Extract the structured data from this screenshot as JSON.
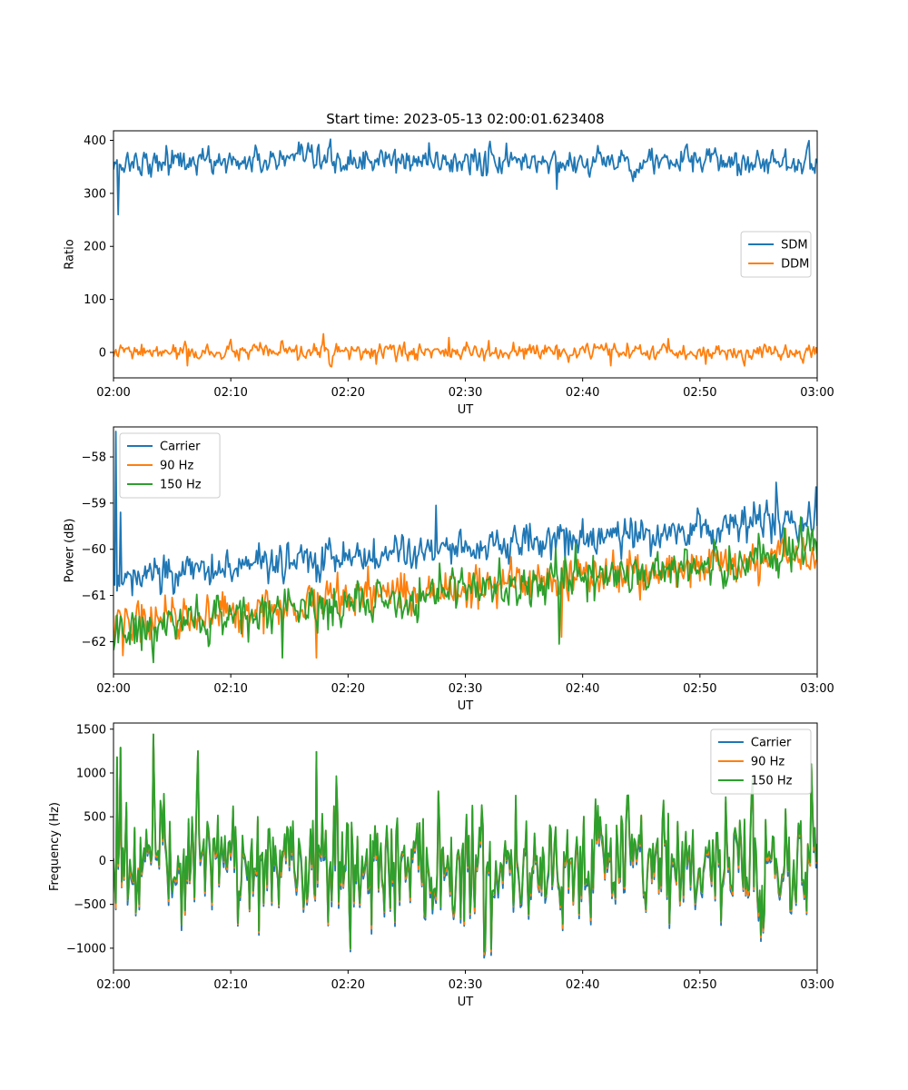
{
  "figure": {
    "title": "Start time: 2023-05-13 02:00:01.623408"
  },
  "colors": {
    "blue": "#1f77b4",
    "orange": "#ff7f0e",
    "green": "#2ca02c"
  },
  "chart_data": [
    {
      "type": "line",
      "title": "Start time: 2023-05-13 02:00:01.623408",
      "xlabel": "UT",
      "ylabel": "Ratio",
      "xlim_minutes": [
        0,
        60
      ],
      "xticks": [
        "02:00",
        "02:10",
        "02:20",
        "02:30",
        "02:40",
        "02:50",
        "03:00"
      ],
      "ylim": [
        -48,
        418
      ],
      "yticks": [
        0,
        100,
        200,
        300,
        400
      ],
      "legend": {
        "position": "center-right",
        "entries": [
          "SDM",
          "DDM"
        ]
      },
      "series": [
        {
          "name": "SDM",
          "color": "#1f77b4",
          "base": 360,
          "amplitude": 12,
          "spikes": [
            [
              0.0,
              345
            ],
            [
              0.4,
              260
            ],
            [
              0.9,
              340
            ],
            [
              1.8,
              370
            ],
            [
              4.5,
              390
            ],
            [
              17.5,
              392
            ],
            [
              26.9,
              395
            ],
            [
              37.8,
              308
            ],
            [
              53.5,
              335
            ],
            [
              59.8,
              338
            ]
          ]
        },
        {
          "name": "DDM",
          "color": "#ff7f0e",
          "base": 0,
          "amplitude": 7,
          "spikes": [
            [
              0.0,
              -8
            ],
            [
              6.3,
              -25
            ],
            [
              17.9,
              35
            ],
            [
              22.4,
              -22
            ],
            [
              28.6,
              28
            ],
            [
              42.4,
              -25
            ],
            [
              50.5,
              -22
            ],
            [
              59.8,
              -3
            ]
          ]
        }
      ]
    },
    {
      "type": "line",
      "title": "",
      "xlabel": "UT",
      "ylabel": "Power (dB)",
      "xlim_minutes": [
        0,
        60
      ],
      "xticks": [
        "02:00",
        "02:10",
        "02:20",
        "02:30",
        "02:40",
        "02:50",
        "03:00"
      ],
      "ylim": [
        -62.7,
        -57.35
      ],
      "yticks": [
        -62,
        -61,
        -60,
        -59,
        -58
      ],
      "legend": {
        "position": "top-left",
        "entries": [
          "Carrier",
          "90 Hz",
          "150 Hz"
        ]
      },
      "series": [
        {
          "name": "Carrier",
          "color": "#1f77b4",
          "start": -60.6,
          "end": -59.35,
          "amplitude": 0.2,
          "spikes": [
            [
              0.0,
              -60.5
            ],
            [
              0.15,
              -57.45
            ],
            [
              0.35,
              -60.9
            ],
            [
              0.6,
              -59.2
            ],
            [
              0.9,
              -60.7
            ],
            [
              1.6,
              -61.0
            ],
            [
              27.5,
              -59.05
            ],
            [
              56.5,
              -58.55
            ],
            [
              59.9,
              -58.65
            ]
          ]
        },
        {
          "name": "90 Hz",
          "color": "#ff7f0e",
          "start": -61.6,
          "end": -60.1,
          "amplitude": 0.22,
          "spikes": [
            [
              0.8,
              -62.3
            ],
            [
              17.3,
              -62.35
            ],
            [
              38.2,
              -61.9
            ],
            [
              57.3,
              -59.55
            ],
            [
              58.8,
              -59.75
            ]
          ]
        },
        {
          "name": "150 Hz",
          "color": "#2ca02c",
          "start": -61.75,
          "end": -60.05,
          "amplitude": 0.22,
          "spikes": [
            [
              3.4,
              -62.45
            ],
            [
              14.4,
              -62.35
            ],
            [
              38.0,
              -62.05
            ],
            [
              58.6,
              -59.3
            ],
            [
              59.0,
              -59.95
            ]
          ]
        }
      ]
    },
    {
      "type": "line",
      "title": "",
      "xlabel": "UT",
      "ylabel": "Frequency (Hz)",
      "xlim_minutes": [
        0,
        60
      ],
      "xticks": [
        "02:00",
        "02:10",
        "02:20",
        "02:30",
        "02:40",
        "02:50",
        "03:00"
      ],
      "ylim": [
        -1250,
        1570
      ],
      "yticks": [
        -1000,
        -500,
        0,
        500,
        1000,
        1500
      ],
      "legend": {
        "position": "top-right",
        "entries": [
          "Carrier",
          "90 Hz",
          "150 Hz"
        ]
      },
      "series": [
        {
          "name": "Carrier",
          "color": "#1f77b4",
          "offset": -60,
          "amplitude": 330,
          "spikes": [
            [
              0.3,
              1180
            ],
            [
              0.6,
              1290
            ],
            [
              3.4,
              1440
            ],
            [
              7.2,
              1250
            ],
            [
              17.3,
              1240
            ],
            [
              12.4,
              -850
            ],
            [
              31.6,
              -1110
            ],
            [
              32.2,
              -1080
            ],
            [
              54.5,
              950
            ],
            [
              55.2,
              -920
            ],
            [
              59.5,
              1100
            ]
          ]
        },
        {
          "name": "90 Hz",
          "color": "#ff7f0e",
          "offset": -25,
          "amplitude": 330,
          "spikes": [
            [
              0.3,
              1180
            ],
            [
              0.6,
              1290
            ],
            [
              3.4,
              1440
            ],
            [
              7.2,
              1250
            ],
            [
              17.3,
              1240
            ],
            [
              12.4,
              -820
            ],
            [
              31.6,
              -1070
            ],
            [
              32.2,
              -1040
            ],
            [
              54.5,
              950
            ],
            [
              55.2,
              -880
            ],
            [
              59.5,
              1100
            ]
          ]
        },
        {
          "name": "150 Hz",
          "color": "#2ca02c",
          "offset": 0,
          "amplitude": 330,
          "spikes": [
            [
              0.3,
              1180
            ],
            [
              0.6,
              1290
            ],
            [
              3.4,
              1440
            ],
            [
              7.2,
              1250
            ],
            [
              17.3,
              1240
            ],
            [
              12.4,
              -800
            ],
            [
              31.6,
              -1040
            ],
            [
              32.2,
              -1010
            ],
            [
              54.5,
              950
            ],
            [
              55.2,
              -850
            ],
            [
              59.5,
              1100
            ]
          ]
        }
      ]
    }
  ]
}
